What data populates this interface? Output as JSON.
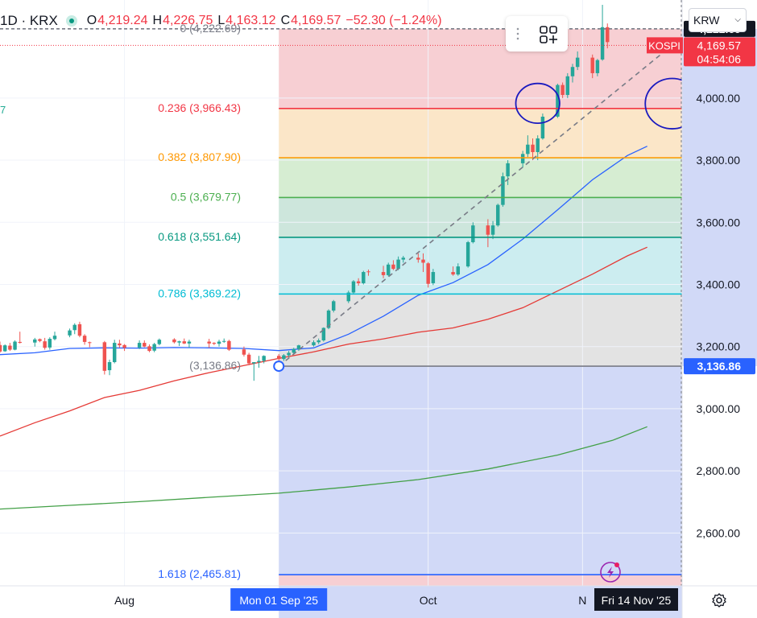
{
  "header": {
    "symbol": "1D · KRX",
    "open_label": "O",
    "open": "4,219.24",
    "high_label": "H",
    "high": "4,226.75",
    "low_label": "L",
    "low": "4,163.12",
    "close_label": "C",
    "close": "4,169.57",
    "change": "−52.30 (−1.24%)"
  },
  "left_edge_value": "7",
  "toolbar": {
    "grip_icon": "drag-handle-icon",
    "layout_icon": "layout-grid-plus-icon"
  },
  "currency_select": {
    "value": "KRW"
  },
  "settings_icon": "gear-icon",
  "colors": {
    "up": "#26a69a",
    "down": "#ef5350",
    "ma_fast": "#2962ff",
    "ma_mid": "#e53935",
    "ma_slow": "#43a047",
    "fib_0": "#787b86",
    "fib_0236": "#f23645",
    "fib_0382": "#ff9800",
    "fib_05": "#4caf50",
    "fib_0618": "#089981",
    "fib_0786": "#00bcd4",
    "fib_1": "#787b86",
    "fib_1618": "#2962ff"
  },
  "chart_data": {
    "type": "candlestick",
    "title": "",
    "y_axis": {
      "range": [
        2430,
        4300
      ],
      "ticks": [
        "4,000.00",
        "3,800.00",
        "3,600.00",
        "3,400.00",
        "3,200.00",
        "3,000.00",
        "2,800.00",
        "2,600.00"
      ],
      "tick_values": [
        4000,
        3800,
        3600,
        3400,
        3200,
        3000,
        2800,
        2600
      ]
    },
    "x_axis": {
      "visible_range": [
        "2025-07-07",
        "2025-11-21"
      ],
      "ticks": [
        {
          "label": "Aug",
          "date": "2025-08-01"
        },
        {
          "label": "Oct",
          "date": "2025-10-01"
        },
        {
          "label": "N",
          "date": "2025-11-01"
        }
      ],
      "highlight_start": "Mon 01 Sep '25",
      "highlight_end": "Fri 14 Nov '25"
    },
    "price_badges": [
      {
        "text": "4,222.69",
        "value": 4222.69,
        "style": "dark"
      },
      {
        "text": "4,169.57",
        "value": 4169.57,
        "style": "red"
      },
      {
        "text": "04:54:06",
        "style": "red-sub"
      },
      {
        "text": "3,136.86",
        "value": 3136.86,
        "style": "blue"
      }
    ],
    "series_label": {
      "text": "KOSPI",
      "value": 4169.57
    },
    "fibonacci": {
      "from": {
        "date": "2025-09-01",
        "value": 3136.86
      },
      "to": {
        "date": "2025-11-14",
        "value": 4222.69
      },
      "levels": [
        {
          "ratio": 0,
          "text": "0 (4,222.69)",
          "value": 4222.69
        },
        {
          "ratio": 0.236,
          "text": "0.236 (3,966.43)",
          "value": 3966.43
        },
        {
          "ratio": 0.382,
          "text": "0.382 (3,807.90)",
          "value": 3807.9
        },
        {
          "ratio": 0.5,
          "text": "0.5 (3,679.77)",
          "value": 3679.77
        },
        {
          "ratio": 0.618,
          "text": "0.618 (3,551.64)",
          "value": 3551.64
        },
        {
          "ratio": 0.786,
          "text": "0.786 (3,369.22)",
          "value": 3369.22
        },
        {
          "ratio": 1,
          "text": "(3,136.86)",
          "value": 3136.86
        },
        {
          "ratio": 1.618,
          "text": "1.618 (2,465.81)",
          "value": 2465.81
        }
      ]
    },
    "trend_line": {
      "from": {
        "date": "2025-09-01",
        "value": 3136.86
      },
      "to": {
        "date": "2025-11-19",
        "value": 4170
      }
    },
    "annotations": [
      {
        "shape": "ellipse",
        "center": {
          "date": "2025-10-23",
          "value": 3983
        },
        "radius_days": 4.4,
        "radius_value": 64
      },
      {
        "shape": "ellipse",
        "center": {
          "date": "2025-11-19",
          "value": 3982
        },
        "radius_days": 5.4,
        "radius_value": 81
      }
    ],
    "moving_averages": [
      {
        "color": "#2962ff",
        "points": [
          [
            "2025-07-07",
            3174
          ],
          [
            "2025-07-14",
            3180
          ],
          [
            "2025-07-21",
            3194
          ],
          [
            "2025-07-28",
            3196
          ],
          [
            "2025-08-04",
            3195
          ],
          [
            "2025-08-11",
            3197
          ],
          [
            "2025-08-18",
            3196
          ],
          [
            "2025-08-25",
            3194
          ],
          [
            "2025-09-01",
            3187
          ],
          [
            "2025-09-08",
            3196
          ],
          [
            "2025-09-15",
            3240
          ],
          [
            "2025-09-22",
            3298
          ],
          [
            "2025-09-29",
            3365
          ],
          [
            "2025-10-06",
            3406
          ],
          [
            "2025-10-13",
            3464
          ],
          [
            "2025-10-20",
            3546
          ],
          [
            "2025-10-27",
            3640
          ],
          [
            "2025-11-03",
            3737
          ],
          [
            "2025-11-10",
            3815
          ],
          [
            "2025-11-14",
            3845
          ]
        ]
      },
      {
        "color": "#e53935",
        "points": [
          [
            "2025-07-07",
            2912
          ],
          [
            "2025-07-14",
            2955
          ],
          [
            "2025-07-21",
            2993
          ],
          [
            "2025-07-28",
            3036
          ],
          [
            "2025-08-04",
            3059
          ],
          [
            "2025-08-11",
            3090
          ],
          [
            "2025-08-18",
            3116
          ],
          [
            "2025-08-25",
            3139
          ],
          [
            "2025-09-01",
            3162
          ],
          [
            "2025-09-08",
            3183
          ],
          [
            "2025-09-15",
            3208
          ],
          [
            "2025-09-22",
            3225
          ],
          [
            "2025-09-29",
            3246
          ],
          [
            "2025-10-06",
            3260
          ],
          [
            "2025-10-13",
            3288
          ],
          [
            "2025-10-20",
            3325
          ],
          [
            "2025-10-27",
            3379
          ],
          [
            "2025-11-03",
            3433
          ],
          [
            "2025-11-10",
            3492
          ],
          [
            "2025-11-14",
            3520
          ]
        ]
      },
      {
        "color": "#43a047",
        "points": [
          [
            "2025-07-07",
            2677
          ],
          [
            "2025-07-21",
            2689
          ],
          [
            "2025-08-04",
            2701
          ],
          [
            "2025-08-18",
            2715
          ],
          [
            "2025-09-01",
            2728
          ],
          [
            "2025-09-15",
            2748
          ],
          [
            "2025-09-29",
            2772
          ],
          [
            "2025-10-13",
            2806
          ],
          [
            "2025-10-27",
            2851
          ],
          [
            "2025-11-07",
            2898
          ],
          [
            "2025-11-14",
            2942
          ]
        ]
      }
    ],
    "candles": [
      {
        "date": "2025-07-07",
        "open": 3205,
        "high": 3216,
        "low": 3180,
        "close": 3184
      },
      {
        "date": "2025-07-08",
        "open": 3185,
        "high": 3207,
        "low": 3183,
        "close": 3204
      },
      {
        "date": "2025-07-09",
        "open": 3203,
        "high": 3212,
        "low": 3186,
        "close": 3190
      },
      {
        "date": "2025-07-10",
        "open": 3190,
        "high": 3220,
        "low": 3188,
        "close": 3216
      },
      {
        "date": "2025-07-11",
        "open": 3215,
        "high": 3248,
        "low": 3210,
        "close": 3212
      },
      {
        "date": "2025-07-14",
        "open": 3213,
        "high": 3228,
        "low": 3200,
        "close": 3223
      },
      {
        "date": "2025-07-15",
        "open": 3224,
        "high": 3226,
        "low": 3214,
        "close": 3218
      },
      {
        "date": "2025-07-16",
        "open": 3217,
        "high": 3228,
        "low": 3190,
        "close": 3196
      },
      {
        "date": "2025-07-17",
        "open": 3197,
        "high": 3230,
        "low": 3190,
        "close": 3225
      },
      {
        "date": "2025-07-18",
        "open": 3224,
        "high": 3248,
        "low": 3220,
        "close": 3235
      },
      {
        "date": "2025-07-21",
        "open": 3236,
        "high": 3258,
        "low": 3230,
        "close": 3252
      },
      {
        "date": "2025-07-22",
        "open": 3253,
        "high": 3275,
        "low": 3240,
        "close": 3270
      },
      {
        "date": "2025-07-23",
        "open": 3272,
        "high": 3280,
        "low": 3230,
        "close": 3235
      },
      {
        "date": "2025-07-24",
        "open": 3235,
        "high": 3240,
        "low": 3206,
        "close": 3215
      },
      {
        "date": "2025-07-25",
        "open": 3214,
        "high": 3216,
        "low": 3198,
        "close": 3212
      },
      {
        "date": "2025-07-28",
        "open": 3214,
        "high": 3218,
        "low": 3110,
        "close": 3122
      },
      {
        "date": "2025-07-29",
        "open": 3124,
        "high": 3158,
        "low": 3108,
        "close": 3150
      },
      {
        "date": "2025-07-30",
        "open": 3150,
        "high": 3222,
        "low": 3146,
        "close": 3212
      },
      {
        "date": "2025-07-31",
        "open": 3210,
        "high": 3222,
        "low": 3196,
        "close": 3204
      },
      {
        "date": "2025-08-01",
        "open": 3205,
        "high": 3208,
        "low": 3186,
        "close": 3196
      },
      {
        "date": "2025-08-04",
        "open": 3197,
        "high": 3220,
        "low": 3192,
        "close": 3212
      },
      {
        "date": "2025-08-05",
        "open": 3212,
        "high": 3220,
        "low": 3198,
        "close": 3200
      },
      {
        "date": "2025-08-06",
        "open": 3201,
        "high": 3207,
        "low": 3182,
        "close": 3186
      },
      {
        "date": "2025-08-07",
        "open": 3187,
        "high": 3212,
        "low": 3182,
        "close": 3208
      },
      {
        "date": "2025-08-08",
        "open": 3208,
        "high": 3226,
        "low": 3204,
        "close": 3222
      },
      {
        "date": "2025-08-11",
        "open": 3223,
        "high": 3227,
        "low": 3210,
        "close": 3214
      },
      {
        "date": "2025-08-12",
        "open": 3213,
        "high": 3219,
        "low": 3202,
        "close": 3217
      },
      {
        "date": "2025-08-13",
        "open": 3217,
        "high": 3226,
        "low": 3208,
        "close": 3210
      },
      {
        "date": "2025-08-14",
        "open": 3210,
        "high": 3222,
        "low": 3196,
        "close": 3216
      },
      {
        "date": "2025-08-18",
        "open": 3216,
        "high": 3225,
        "low": 3196,
        "close": 3210
      },
      {
        "date": "2025-08-19",
        "open": 3212,
        "high": 3214,
        "low": 3205,
        "close": 3209
      },
      {
        "date": "2025-08-20",
        "open": 3209,
        "high": 3222,
        "low": 3200,
        "close": 3216
      },
      {
        "date": "2025-08-21",
        "open": 3216,
        "high": 3226,
        "low": 3212,
        "close": 3218
      },
      {
        "date": "2025-08-22",
        "open": 3218,
        "high": 3222,
        "low": 3186,
        "close": 3190
      },
      {
        "date": "2025-08-25",
        "open": 3191,
        "high": 3200,
        "low": 3168,
        "close": 3174
      },
      {
        "date": "2025-08-26",
        "open": 3174,
        "high": 3180,
        "low": 3140,
        "close": 3146
      },
      {
        "date": "2025-08-27",
        "open": 3146,
        "high": 3150,
        "low": 3090,
        "close": 3150
      },
      {
        "date": "2025-08-28",
        "open": 3150,
        "high": 3170,
        "low": 3132,
        "close": 3154
      },
      {
        "date": "2025-08-29",
        "open": 3154,
        "high": 3172,
        "low": 3146,
        "close": 3170
      },
      {
        "date": "2025-09-01",
        "open": 3170,
        "high": 3176,
        "low": 3136,
        "close": 3160
      },
      {
        "date": "2025-09-02",
        "open": 3160,
        "high": 3176,
        "low": 3154,
        "close": 3172
      },
      {
        "date": "2025-09-03",
        "open": 3172,
        "high": 3186,
        "low": 3166,
        "close": 3180
      },
      {
        "date": "2025-09-04",
        "open": 3180,
        "high": 3196,
        "low": 3174,
        "close": 3192
      },
      {
        "date": "2025-09-05",
        "open": 3192,
        "high": 3206,
        "low": 3186,
        "close": 3204
      },
      {
        "date": "2025-09-08",
        "open": 3204,
        "high": 3220,
        "low": 3200,
        "close": 3214
      },
      {
        "date": "2025-09-09",
        "open": 3214,
        "high": 3226,
        "low": 3208,
        "close": 3220
      },
      {
        "date": "2025-09-10",
        "open": 3220,
        "high": 3262,
        "low": 3216,
        "close": 3260
      },
      {
        "date": "2025-09-11",
        "open": 3260,
        "high": 3320,
        "low": 3256,
        "close": 3316
      },
      {
        "date": "2025-09-12",
        "open": 3316,
        "high": 3350,
        "low": 3310,
        "close": 3346
      },
      {
        "date": "2025-09-15",
        "open": 3346,
        "high": 3380,
        "low": 3340,
        "close": 3374
      },
      {
        "date": "2025-09-16",
        "open": 3374,
        "high": 3414,
        "low": 3370,
        "close": 3410
      },
      {
        "date": "2025-09-17",
        "open": 3410,
        "high": 3420,
        "low": 3396,
        "close": 3404
      },
      {
        "date": "2025-09-18",
        "open": 3404,
        "high": 3444,
        "low": 3400,
        "close": 3440
      },
      {
        "date": "2025-09-19",
        "open": 3442,
        "high": 3448,
        "low": 3428,
        "close": 3440
      },
      {
        "date": "2025-09-22",
        "open": 3440,
        "high": 3460,
        "low": 3420,
        "close": 3430
      },
      {
        "date": "2025-09-23",
        "open": 3430,
        "high": 3470,
        "low": 3426,
        "close": 3464
      },
      {
        "date": "2025-09-24",
        "open": 3464,
        "high": 3478,
        "low": 3446,
        "close": 3450
      },
      {
        "date": "2025-09-25",
        "open": 3450,
        "high": 3490,
        "low": 3446,
        "close": 3480
      },
      {
        "date": "2025-09-26",
        "open": 3480,
        "high": 3492,
        "low": 3470,
        "close": 3486
      },
      {
        "date": "2025-09-29",
        "open": 3486,
        "high": 3500,
        "low": 3470,
        "close": 3480
      },
      {
        "date": "2025-09-30",
        "open": 3480,
        "high": 3500,
        "low": 3440,
        "close": 3470
      },
      {
        "date": "2025-10-01",
        "open": 3468,
        "high": 3472,
        "low": 3390,
        "close": 3402
      },
      {
        "date": "2025-10-02",
        "open": 3404,
        "high": 3450,
        "low": 3398,
        "close": 3440
      },
      {
        "date": "2025-10-06",
        "open": 3440,
        "high": 3458,
        "low": 3428,
        "close": 3432
      },
      {
        "date": "2025-10-07",
        "open": 3432,
        "high": 3468,
        "low": 3428,
        "close": 3458
      },
      {
        "date": "2025-10-09",
        "open": 3458,
        "high": 3540,
        "low": 3454,
        "close": 3536
      },
      {
        "date": "2025-10-10",
        "open": 3536,
        "high": 3600,
        "low": 3532,
        "close": 3590
      },
      {
        "date": "2025-10-13",
        "open": 3590,
        "high": 3610,
        "low": 3520,
        "close": 3560
      },
      {
        "date": "2025-10-14",
        "open": 3560,
        "high": 3604,
        "low": 3546,
        "close": 3590
      },
      {
        "date": "2025-10-15",
        "open": 3590,
        "high": 3660,
        "low": 3586,
        "close": 3656
      },
      {
        "date": "2025-10-16",
        "open": 3656,
        "high": 3760,
        "low": 3650,
        "close": 3748
      },
      {
        "date": "2025-10-17",
        "open": 3748,
        "high": 3800,
        "low": 3720,
        "close": 3790
      },
      {
        "date": "2025-10-20",
        "open": 3790,
        "high": 3830,
        "low": 3776,
        "close": 3820
      },
      {
        "date": "2025-10-21",
        "open": 3820,
        "high": 3880,
        "low": 3810,
        "close": 3850
      },
      {
        "date": "2025-10-22",
        "open": 3850,
        "high": 3870,
        "low": 3800,
        "close": 3826
      },
      {
        "date": "2025-10-23",
        "open": 3826,
        "high": 3880,
        "low": 3800,
        "close": 3870
      },
      {
        "date": "2025-10-24",
        "open": 3870,
        "high": 3950,
        "low": 3866,
        "close": 3940
      },
      {
        "date": "2025-10-27",
        "open": 3940,
        "high": 4046,
        "low": 3936,
        "close": 4042
      },
      {
        "date": "2025-10-28",
        "open": 4042,
        "high": 4050,
        "low": 4000,
        "close": 4010
      },
      {
        "date": "2025-10-29",
        "open": 4010,
        "high": 4080,
        "low": 4000,
        "close": 4070
      },
      {
        "date": "2025-10-30",
        "open": 4070,
        "high": 4110,
        "low": 4050,
        "close": 4100
      },
      {
        "date": "2025-10-31",
        "open": 4100,
        "high": 4150,
        "low": 4090,
        "close": 4130
      },
      {
        "date": "2025-11-03",
        "open": 4130,
        "high": 4140,
        "low": 4064,
        "close": 4080
      },
      {
        "date": "2025-11-04",
        "open": 4080,
        "high": 4126,
        "low": 4070,
        "close": 4122
      },
      {
        "date": "2025-11-05",
        "open": 4124,
        "high": 4300,
        "low": 4120,
        "close": 4228
      },
      {
        "date": "2025-11-06",
        "open": 4228,
        "high": 4240,
        "low": 4160,
        "close": 4180
      }
    ]
  }
}
